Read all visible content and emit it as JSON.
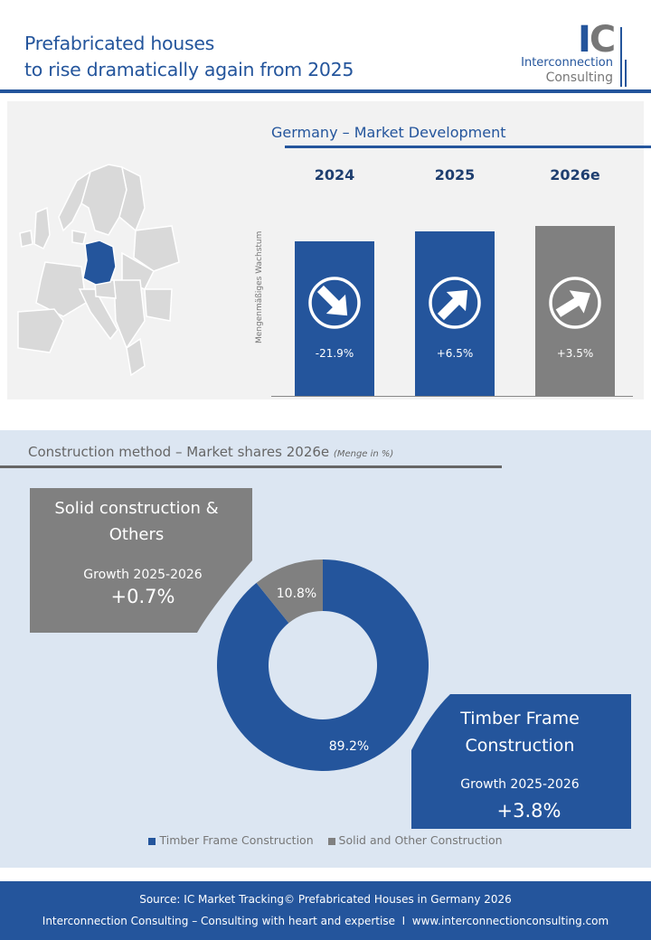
{
  "header": {
    "title_line1": "Prefabricated houses",
    "title_line2": "to rise dramatically again from 2025",
    "logo_letters": "IC",
    "logo_line1": "Interconnection",
    "logo_line2": "Consulting"
  },
  "colors": {
    "blue": "#24559c",
    "gray": "#808080",
    "panel": "#f2f2f2",
    "lightblue": "#dce6f2"
  },
  "market": {
    "title": "Germany – Market Development",
    "highlighted_country": "Germany"
  },
  "chart_data": [
    {
      "type": "bar",
      "title": "Germany – Market Development",
      "ylabel": "Mengenmäßiges Wachstum",
      "categories": [
        "2024",
        "2025",
        "2026e"
      ],
      "values": [
        -21.9,
        6.5,
        3.5
      ],
      "labels": [
        "-21.9%",
        "+6.5%",
        "+3.5%"
      ],
      "arrow_direction": [
        "down",
        "up",
        "up"
      ],
      "bar_colors": [
        "#24559c",
        "#24559c",
        "#808080"
      ],
      "relative_volume_index": [
        100,
        106.5,
        110.2
      ]
    },
    {
      "type": "pie",
      "title": "Construction method – Market shares 2026e",
      "subtitle": "(Menge in %)",
      "categories": [
        "Timber Frame Construction",
        "Solid and Other Construction"
      ],
      "values": [
        89.2,
        10.8
      ],
      "labels": [
        "89.2%",
        "10.8%"
      ],
      "colors": [
        "#24559c",
        "#808080"
      ],
      "legend": "bottom"
    }
  ],
  "shares": {
    "title": "Construction method – Market shares 2026e",
    "subtitle": "(Menge in %)",
    "solid": {
      "name_line1": "Solid construction &",
      "name_line2": "Others",
      "growth_label": "Growth 2025-2026",
      "growth": "+0.7%"
    },
    "timber": {
      "name_line1": "Timber Frame",
      "name_line2": "Construction",
      "growth_label": "Growth 2025-2026",
      "growth": "+3.8%"
    }
  },
  "footer": {
    "source": "Source: IC Market Tracking© Prefabricated Houses in Germany 2026",
    "tagline": "Interconnection Consulting – Consulting with heart and expertise",
    "separator": "I",
    "url": "www.interconnectionconsulting.com"
  }
}
